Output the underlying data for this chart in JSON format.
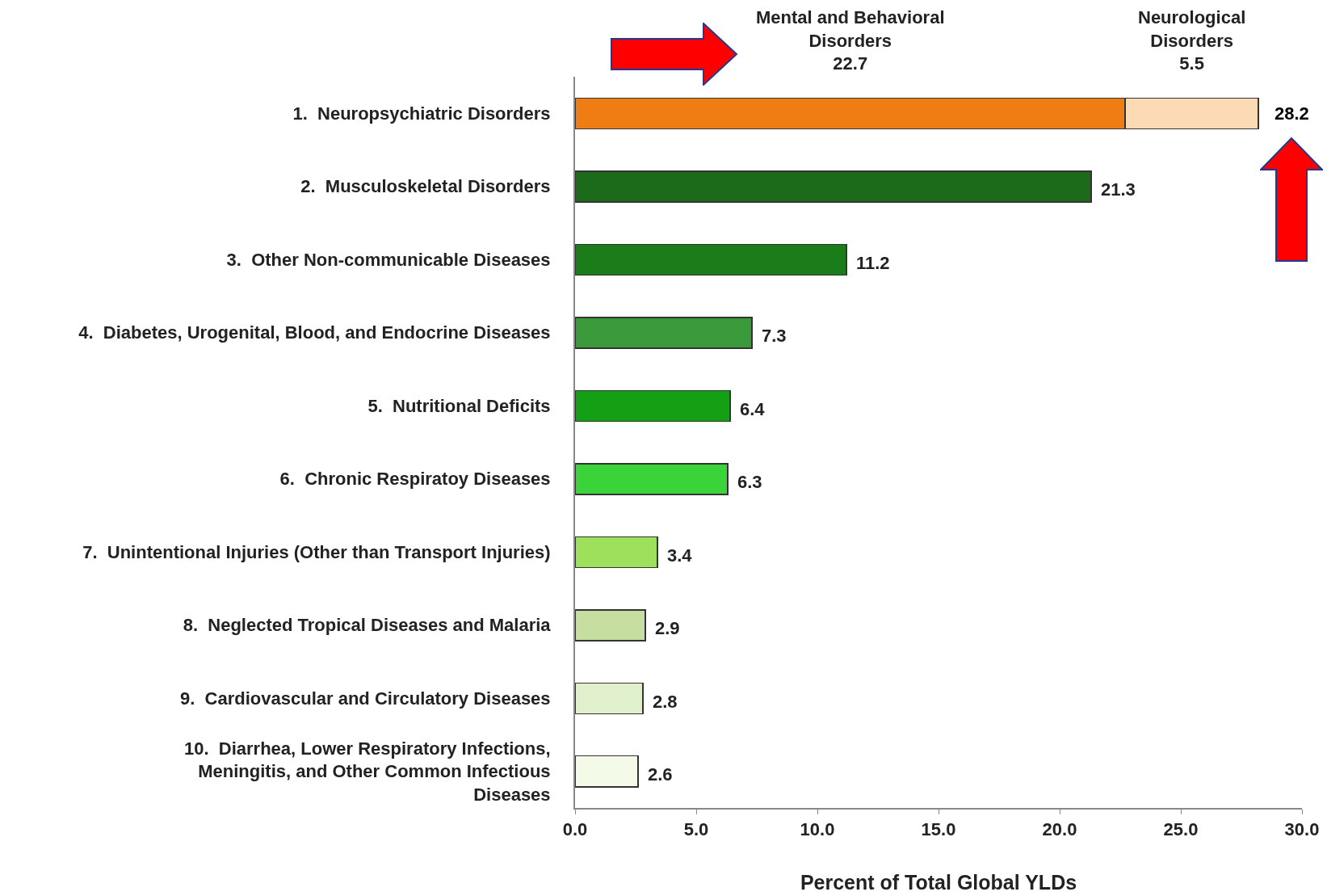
{
  "chart_data": {
    "type": "bar",
    "orientation": "horizontal",
    "stacked": true,
    "categories": [
      "1.  Neuropsychiatric Disorders",
      "2.  Musculoskeletal Disorders",
      "3.  Other Non-communicable Diseases",
      "4.  Diabetes, Urogenital, Blood, and Endocrine Diseases",
      "5.  Nutritional Deficits",
      "6.  Chronic Respiratoy Diseases",
      "7.  Unintentional Injuries (Other than Transport Injuries)",
      "8.  Neglected Tropical Diseases and Malaria",
      "9.  Cardiovascular and Circulatory Diseases",
      "10.  Diarrhea, Lower Respiratory Infections, Meningitis, and Other Common Infectious Diseases"
    ],
    "series": [
      {
        "colors": [
          "#f07c14",
          "#1b6b1b",
          "#1a7d1a",
          "#3a9a3a",
          "#14a014",
          "#3ad43a",
          "#9ce05c",
          "#c6dea0",
          "#e0f0cc",
          "#f4fae8"
        ],
        "values": [
          22.7,
          21.3,
          11.2,
          7.3,
          6.4,
          6.3,
          3.4,
          2.9,
          2.8,
          2.6
        ],
        "value_labels": [
          null,
          "21.3",
          "11.2",
          "7.3",
          "6.4",
          "6.3",
          "3.4",
          "2.9",
          "2.8",
          "2.6"
        ]
      },
      {
        "color": "#fddab6",
        "values": [
          5.5,
          null,
          null,
          null,
          null,
          null,
          null,
          null,
          null,
          null
        ],
        "value_labels": [
          null,
          null,
          null,
          null,
          null,
          null,
          null,
          null,
          null,
          null
        ]
      }
    ],
    "totals": [
      "28.2",
      null,
      null,
      null,
      null,
      null,
      null,
      null,
      null,
      null
    ],
    "annotations": [
      "Mental and Behavioral\nDisorders\n22.7",
      "Neurological\nDisorders\n5.5"
    ],
    "xlabel": "Percent of Total Global YLDs",
    "xlim": [
      0,
      30
    ],
    "xticks": [
      {
        "value": 0,
        "label": "0.0"
      },
      {
        "value": 5,
        "label": "5.0"
      },
      {
        "value": 10,
        "label": "10.0"
      },
      {
        "value": 15,
        "label": "15.0"
      },
      {
        "value": 20,
        "label": "20.0"
      },
      {
        "value": 25,
        "label": "25.0"
      },
      {
        "value": 30,
        "label": "30.0"
      }
    ],
    "grid": false
  }
}
